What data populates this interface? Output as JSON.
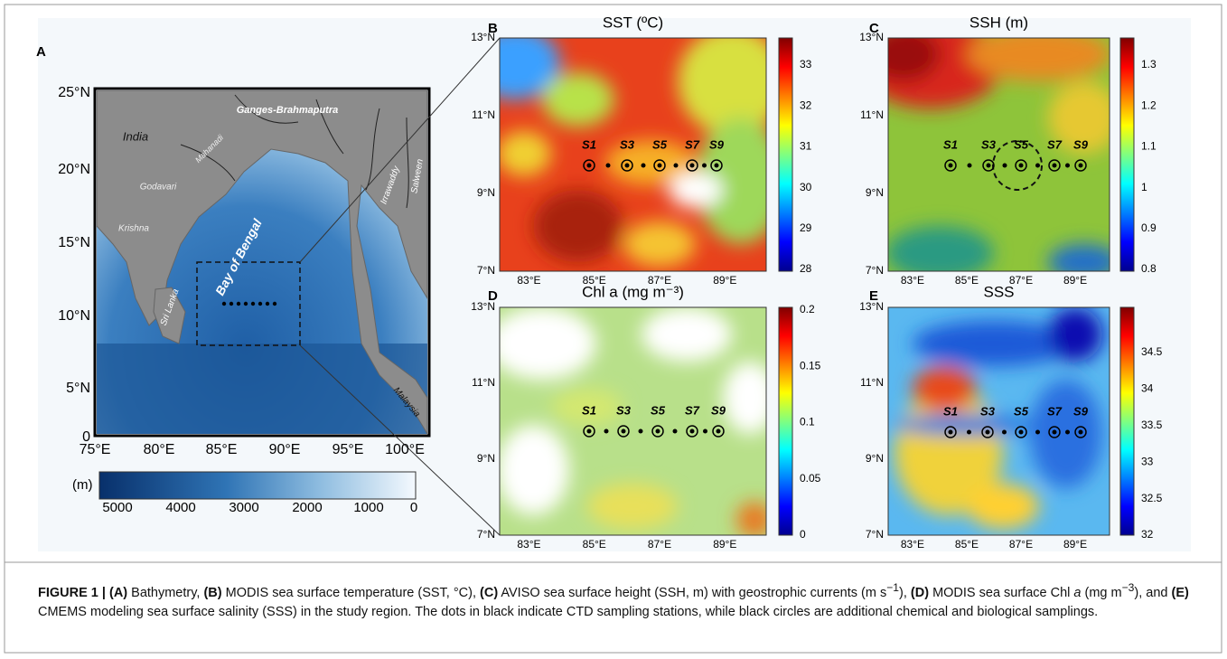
{
  "panels": [
    {
      "letter": "A",
      "xticks": [
        "75°E",
        "80°E",
        "85°E",
        "90°E",
        "95°E",
        "100°E"
      ],
      "yticks": [
        "25°N",
        "20°N",
        "15°N",
        "10°N",
        "5°N",
        "0"
      ],
      "places": [
        "India",
        "Ganges-Brahmaputra",
        "Mahanadi",
        "Godavari",
        "Krishna",
        "Sri Lanka",
        "Bay of Bengal",
        "Irrawaddy",
        "Salween",
        "Malaysia"
      ],
      "colorbar": {
        "unit": "(m)",
        "ticks": [
          "5000",
          "4000",
          "3000",
          "2000",
          "1000",
          "0"
        ]
      }
    },
    {
      "letter": "B",
      "title": "SST (ºC)",
      "xticks": [
        "83°E",
        "85°E",
        "87°E",
        "89°E"
      ],
      "yticks": [
        "13°N",
        "11°N",
        "9°N",
        "7°N"
      ],
      "colorbar": {
        "ticks": [
          "33",
          "32",
          "31",
          "30",
          "29",
          "28"
        ]
      },
      "stations": [
        "S1",
        "S3",
        "S5",
        "S7",
        "S9"
      ]
    },
    {
      "letter": "C",
      "title": "SSH (m)",
      "xticks": [
        "83°E",
        "85°E",
        "87°E",
        "89°E"
      ],
      "yticks": [
        "13°N",
        "11°N",
        "9°N",
        "7°N"
      ],
      "colorbar": {
        "ticks": [
          "1.3",
          "1.2",
          "1.1",
          "1",
          "0.9",
          "0.8"
        ]
      },
      "stations": [
        "S1",
        "S3",
        "S5",
        "S7",
        "S9"
      ]
    },
    {
      "letter": "D",
      "title": "Chl a (mg m⁻³)",
      "xticks": [
        "83°E",
        "85°E",
        "87°E",
        "89°E"
      ],
      "yticks": [
        "13°N",
        "11°N",
        "9°N",
        "7°N"
      ],
      "colorbar": {
        "ticks": [
          "0.2",
          "0.15",
          "0.1",
          "0.05",
          "0"
        ]
      },
      "stations": [
        "S1",
        "S3",
        "S5",
        "S7",
        "S9"
      ]
    },
    {
      "letter": "E",
      "title": "SSS",
      "xticks": [
        "83°E",
        "85°E",
        "87°E",
        "89°E"
      ],
      "yticks": [
        "13°N",
        "11°N",
        "9°N",
        "7°N"
      ],
      "colorbar": {
        "ticks": [
          "34.5",
          "34",
          "33.5",
          "33",
          "32.5",
          "32"
        ]
      },
      "stations": [
        "S1",
        "S3",
        "S5",
        "S7",
        "S9"
      ]
    }
  ],
  "caption": [
    {
      "b": "FIGURE 1 | (A)"
    },
    {
      "t": " Bathymetry, "
    },
    {
      "b": "(B)"
    },
    {
      "t": " MODIS sea surface temperature (SST, °C), "
    },
    {
      "b": "(C)"
    },
    {
      "t": " AVISO sea surface height (SSH, m) with geostrophic currents (m s"
    },
    {
      "sup": "−1"
    },
    {
      "t": "), "
    },
    {
      "b": "(D)"
    },
    {
      "t": " MODIS sea surface Chl "
    },
    {
      "i": "a"
    },
    {
      "t": " (mg m"
    },
    {
      "sup": "−3"
    },
    {
      "t": "), and "
    },
    {
      "b": "(E)"
    },
    {
      "t": " CMEMS modeling sea surface salinity (SSS) in the study region. The dots in black indicate CTD sampling stations, while black circles are additional chemical and biological samplings."
    }
  ]
}
